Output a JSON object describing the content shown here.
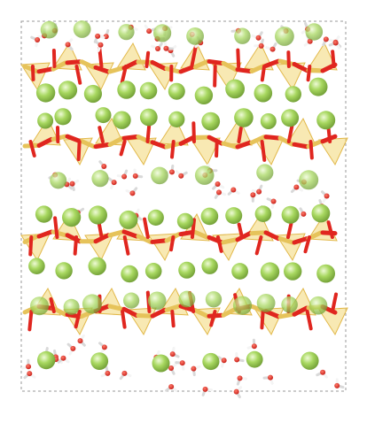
{
  "scene": {
    "subject": "molecular-structure",
    "colors": {
      "background": "#ffffff",
      "cell_border": "#9a9a9a",
      "tetrahedron_fill": "#f3d774",
      "tetrahedron_edge": "#e2b84a",
      "bond_yellow": "#e6c35a",
      "oxygen_red": "#e0261f",
      "hydrogen_white": "#f4f4f4",
      "sphere_green": "#a8d860",
      "sphere_highlight": "#e9f8c8",
      "sphere_shadow": "#6f9c34"
    }
  }
}
